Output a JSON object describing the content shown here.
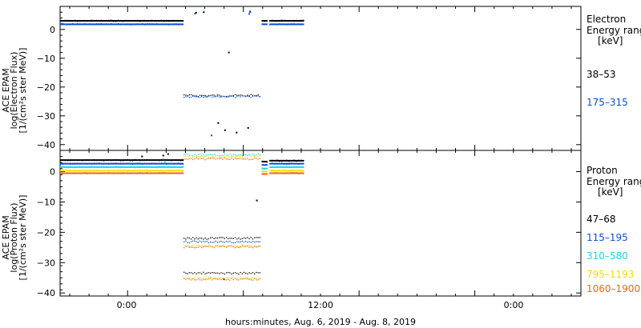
{
  "xlabel": "hours:minutes, Aug.  6, 2019 - Aug.  8, 2019",
  "x_ticks": [
    "0:00",
    "12:00",
    "0:00"
  ],
  "chart_data": [
    {
      "type": "scatter",
      "ylabel_lines": [
        "ACE EPAM",
        "log(Electron Flux)",
        "[1/(cm²s ster MeV)]"
      ],
      "legend_title": [
        "Electron",
        "Energy ranges",
        "[keV]"
      ],
      "ylim": [
        -42,
        8
      ],
      "yticks": [
        "0",
        "−10",
        "−20",
        "−30",
        "−40"
      ],
      "xlim": [
        -7,
        47
      ],
      "series": [
        {
          "name": "38–53",
          "color": "#000000",
          "segments": [
            {
              "x0": -7,
              "x1": 5.8,
              "y": 3.0
            },
            {
              "x0": 5.8,
              "x1": 13.8,
              "y": -23.0
            },
            {
              "x0": 13.9,
              "x1": 14.5,
              "y": 3.0
            },
            {
              "x0": 14.7,
              "x1": 18.3,
              "y": 3.0
            }
          ],
          "points": [
            [
              7.1,
              5.8
            ],
            [
              7.9,
              6.0
            ],
            [
              12.7,
              6.2
            ],
            [
              9.4,
              -32.5
            ],
            [
              10.5,
              -8.0
            ],
            [
              10.1,
              -35.0
            ],
            [
              12.5,
              -34.2
            ],
            [
              11.3,
              -35.8
            ]
          ]
        },
        {
          "name": "175–315",
          "color": "#0b4fd8",
          "segments": [
            {
              "x0": -7,
              "x1": 5.8,
              "y": 1.8
            },
            {
              "x0": 5.8,
              "x1": 13.8,
              "y": -23.3
            },
            {
              "x0": 13.9,
              "x1": 14.5,
              "y": 1.8
            },
            {
              "x0": 14.7,
              "x1": 18.3,
              "y": 1.8
            }
          ],
          "points": [
            [
              7.0,
              5.5
            ],
            [
              12.6,
              5.4
            ],
            [
              12.7,
              6.0
            ],
            [
              8.7,
              -36.8
            ]
          ]
        }
      ]
    },
    {
      "type": "scatter",
      "ylabel_lines": [
        "ACE EPAM",
        "log(Proton Flux)",
        "[1/(cm²s ster MeV)]"
      ],
      "legend_title": [
        "Proton",
        "Energy ranges",
        "[keV]"
      ],
      "ylim": [
        -41,
        7
      ],
      "yticks": [
        "0",
        "−10",
        "−20",
        "−30",
        "−40"
      ],
      "xlim": [
        -7,
        47
      ],
      "series": [
        {
          "name": "47–68",
          "color": "#000000",
          "segments": [
            {
              "x0": -7,
              "x1": 5.8,
              "y": 3.8
            },
            {
              "x0": 5.8,
              "x1": 13.8,
              "y": -22.0
            },
            {
              "x0": 5.8,
              "x1": 13.8,
              "y": -33.5
            },
            {
              "x0": 13.9,
              "x1": 14.5,
              "y": 3.3
            },
            {
              "x0": 14.7,
              "x1": 18.3,
              "y": 3.6
            }
          ],
          "points": [
            [
              1.5,
              5.0
            ],
            [
              3.7,
              5.3
            ],
            [
              4.2,
              5.8
            ],
            [
              13.4,
              -9.5
            ],
            [
              10.0,
              -35.5
            ]
          ]
        },
        {
          "name": "115–195",
          "color": "#0b4fd8",
          "segments": [
            {
              "x0": -7,
              "x1": 5.8,
              "y": 2.6
            },
            {
              "x0": 5.8,
              "x1": 13.8,
              "y": -23.2
            },
            {
              "x0": 13.9,
              "x1": 14.5,
              "y": 2.2
            },
            {
              "x0": 14.7,
              "x1": 18.3,
              "y": 2.6
            }
          ],
          "points": [
            [
              3.7,
              4.0
            ]
          ]
        },
        {
          "name": "310–580",
          "color": "#1ed3e6",
          "segments": [
            {
              "x0": -7,
              "x1": 5.8,
              "y": 1.5
            },
            {
              "x0": 5.8,
              "x1": 13.8,
              "y": 5.5
            },
            {
              "x0": 13.9,
              "x1": 14.5,
              "y": 1.0
            },
            {
              "x0": 14.7,
              "x1": 18.3,
              "y": 1.5
            }
          ],
          "points": [
            [
              3.9,
              3.0
            ]
          ]
        },
        {
          "name": "795–1193",
          "color": "#f4dc00",
          "segments": [
            {
              "x0": -7,
              "x1": 5.8,
              "y": 0.3
            },
            {
              "x0": 5.8,
              "x1": 13.8,
              "y": 5.0
            },
            {
              "x0": 5.8,
              "x1": 13.8,
              "y": -24.5
            },
            {
              "x0": 5.8,
              "x1": 13.8,
              "y": -35.0
            },
            {
              "x0": 13.9,
              "x1": 14.5,
              "y": 0.0
            },
            {
              "x0": 14.7,
              "x1": 18.3,
              "y": 0.3
            }
          ],
          "points": []
        },
        {
          "name": "1060–1900",
          "color": "#f0660a",
          "segments": [
            {
              "x0": -7,
              "x1": 5.8,
              "y": -0.5
            },
            {
              "x0": 5.8,
              "x1": 13.8,
              "y": 4.2
            },
            {
              "x0": 5.8,
              "x1": 13.8,
              "y": -24.8
            },
            {
              "x0": 5.8,
              "x1": 13.8,
              "y": -35.5
            },
            {
              "x0": 13.9,
              "x1": 14.5,
              "y": -0.8
            },
            {
              "x0": 14.7,
              "x1": 18.3,
              "y": -0.5
            }
          ],
          "points": []
        }
      ]
    }
  ]
}
